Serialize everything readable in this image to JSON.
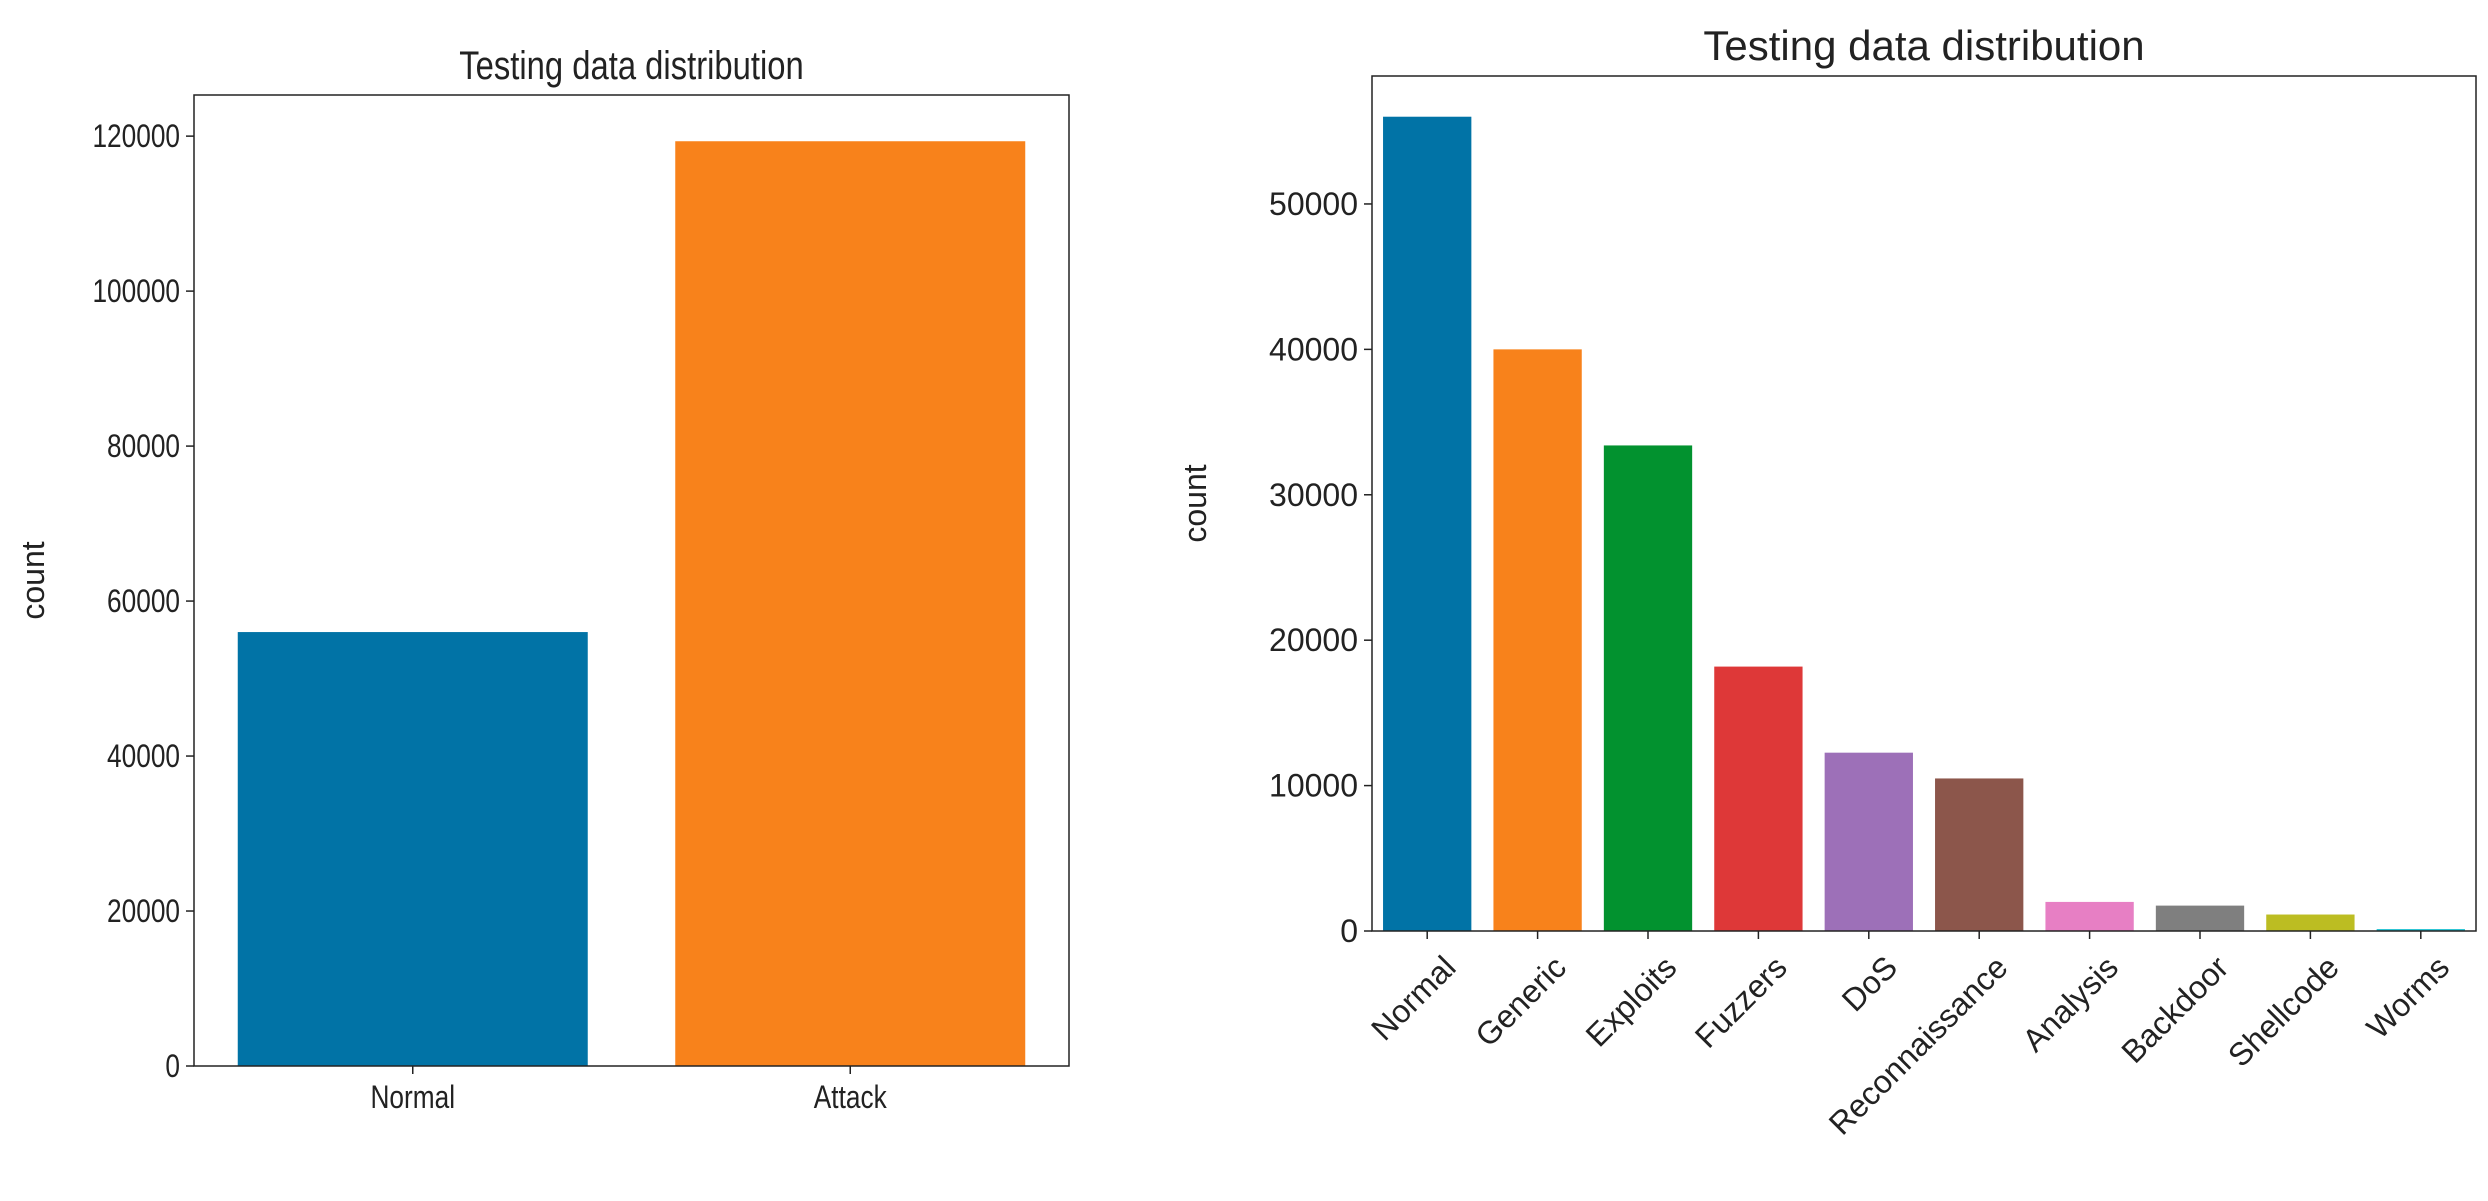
{
  "chart_data": [
    {
      "type": "bar",
      "title": "Testing data distribution",
      "y_label": "count",
      "categories": [
        "Normal",
        "Attack"
      ],
      "values": [
        56000,
        119341
      ],
      "colors": [
        "#0173a6",
        "#f8821b"
      ],
      "ylim": [
        0,
        125308
      ],
      "yticks": [
        0,
        20000,
        40000,
        60000,
        80000,
        100000,
        120000
      ],
      "x_label_rotation": 0
    },
    {
      "type": "bar",
      "title": "Testing data distribution",
      "y_label": "count",
      "categories": [
        "Normal",
        "Generic",
        "Exploits",
        "Fuzzers",
        "DoS",
        "Reconnaissance",
        "Analysis",
        "Backdoor",
        "Shellcode",
        "Worms"
      ],
      "values": [
        56000,
        40000,
        33393,
        18184,
        12264,
        10491,
        2000,
        1746,
        1133,
        130
      ],
      "colors": [
        "#0173a6",
        "#f8821b",
        "#02922f",
        "#de3838",
        "#9d70b8",
        "#8c564b",
        "#e77fc4",
        "#7f7f7f",
        "#bcbd22",
        "#17becf"
      ],
      "ylim": [
        0,
        58800
      ],
      "yticks": [
        0,
        10000,
        20000,
        30000,
        40000,
        50000
      ],
      "x_label_rotation": -45
    }
  ]
}
